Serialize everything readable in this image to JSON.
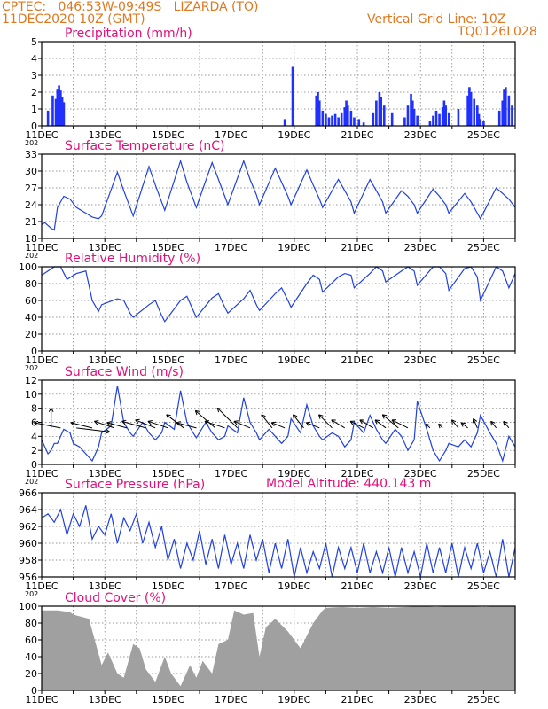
{
  "header": {
    "line1": "CPTEC:   046:53W-09:49S   LIZARDA (TO)",
    "line2": "11DEC2020 10Z (GMT)",
    "grid_note": "Vertical Grid Line: 10Z",
    "code": "TQ0126L028",
    "model_altitude": "Model Altitude: 440.143 m"
  },
  "colors": {
    "header": "#e07820",
    "title": "#e0107a",
    "line": "#2040e0",
    "bar": "#2030ff",
    "cloud": "#a0a0a0",
    "arrow": "#000000"
  },
  "x_axis": {
    "start_day": 11,
    "end_day": 26,
    "tick_labels": [
      "11DEC",
      "13DEC",
      "15DEC",
      "17DEC",
      "19DEC",
      "21DEC",
      "23DEC",
      "25DEC"
    ],
    "year_fragment": "202"
  },
  "chart_data": [
    {
      "type": "bar",
      "title": "Precipitation (mm/h)",
      "ylim": [
        0,
        5
      ],
      "yticks": [
        "0",
        "1",
        "2",
        "3",
        "4",
        "5"
      ],
      "x": [
        11.2,
        11.35,
        11.45,
        11.5,
        11.55,
        11.6,
        11.65,
        11.7,
        18.7,
        18.95,
        19.7,
        19.75,
        19.8,
        19.9,
        20.0,
        20.1,
        20.2,
        20.3,
        20.4,
        20.5,
        20.6,
        20.65,
        20.7,
        20.8,
        20.9,
        21.05,
        21.2,
        21.5,
        21.6,
        21.7,
        21.75,
        21.85,
        22.1,
        22.5,
        22.6,
        22.7,
        22.75,
        22.8,
        22.9,
        23.3,
        23.4,
        23.5,
        23.6,
        23.7,
        23.75,
        23.8,
        23.9,
        24.2,
        24.5,
        24.55,
        24.6,
        24.7,
        24.8,
        24.85,
        24.9,
        25.0,
        25.5,
        25.6,
        25.65,
        25.7,
        25.8,
        25.9
      ],
      "values": [
        0.9,
        1.8,
        1.6,
        2.2,
        2.4,
        2.1,
        1.7,
        1.4,
        0.4,
        3.5,
        1.8,
        2.0,
        1.5,
        0.9,
        0.7,
        0.5,
        0.6,
        0.7,
        0.5,
        0.8,
        1.1,
        1.5,
        1.2,
        0.9,
        0.5,
        0.4,
        0.2,
        0.8,
        1.5,
        2.0,
        1.7,
        1.2,
        0.8,
        0.5,
        1.2,
        1.9,
        1.5,
        1.0,
        0.6,
        0.3,
        0.6,
        0.9,
        0.7,
        1.1,
        1.5,
        1.2,
        0.8,
        1.0,
        1.8,
        2.3,
        2.0,
        1.6,
        1.2,
        0.7,
        0.4,
        0.3,
        0.9,
        1.5,
        2.2,
        2.3,
        1.8,
        1.2
      ]
    },
    {
      "type": "line",
      "title": "Surface Temperature (nC)",
      "ylim": [
        18,
        33
      ],
      "yticks": [
        "18",
        "21",
        "24",
        "27",
        "30",
        "33"
      ],
      "x": [
        11.0,
        11.1,
        11.2,
        11.3,
        11.4,
        11.5,
        11.7,
        11.9,
        12.1,
        12.4,
        12.6,
        12.8,
        12.9,
        13.4,
        13.6,
        13.8,
        13.9,
        14.4,
        14.6,
        14.8,
        14.9,
        15.4,
        15.6,
        15.8,
        15.9,
        16.4,
        16.6,
        16.8,
        16.9,
        17.4,
        17.6,
        17.8,
        17.9,
        18.4,
        18.6,
        18.8,
        18.9,
        19.4,
        19.6,
        19.8,
        19.9,
        20.4,
        20.6,
        20.8,
        20.9,
        21.4,
        21.6,
        21.8,
        21.9,
        22.4,
        22.6,
        22.8,
        22.9,
        23.4,
        23.6,
        23.8,
        23.9,
        24.4,
        24.6,
        24.8,
        24.9,
        25.4,
        25.6,
        25.8,
        26.0
      ],
      "values": [
        20.5,
        20.8,
        20.3,
        19.8,
        19.5,
        23.5,
        25.5,
        25.0,
        23.5,
        22.5,
        21.8,
        21.5,
        22.0,
        29.8,
        26.5,
        23.5,
        22.0,
        30.8,
        27.5,
        24.5,
        23.0,
        31.8,
        28.0,
        25.0,
        23.5,
        31.5,
        28.5,
        25.5,
        24.0,
        31.8,
        28.5,
        25.8,
        24.0,
        30.5,
        28.0,
        25.5,
        24.0,
        30.2,
        27.5,
        25.0,
        23.5,
        28.5,
        26.5,
        24.5,
        22.5,
        28.5,
        26.5,
        24.5,
        22.5,
        26.5,
        25.5,
        24.0,
        22.5,
        26.8,
        25.5,
        24.0,
        22.5,
        26.0,
        24.5,
        22.5,
        21.5,
        27.0,
        26.0,
        25.0,
        23.5
      ]
    },
    {
      "type": "line",
      "title": "Relative Humidity (%)",
      "ylim": [
        0,
        100
      ],
      "yticks": [
        "0",
        "20",
        "40",
        "60",
        "80",
        "100"
      ],
      "x": [
        11.0,
        11.2,
        11.4,
        11.6,
        11.8,
        12.1,
        12.4,
        12.6,
        12.8,
        12.9,
        13.4,
        13.6,
        13.8,
        13.9,
        14.4,
        14.6,
        14.8,
        14.9,
        15.4,
        15.6,
        15.8,
        15.9,
        16.4,
        16.6,
        16.8,
        16.9,
        17.4,
        17.6,
        17.8,
        17.9,
        18.4,
        18.6,
        18.8,
        18.9,
        19.4,
        19.6,
        19.8,
        19.9,
        20.4,
        20.6,
        20.8,
        20.9,
        21.4,
        21.6,
        21.8,
        21.9,
        22.4,
        22.6,
        22.8,
        22.9,
        23.4,
        23.6,
        23.8,
        23.9,
        24.4,
        24.6,
        24.8,
        24.9,
        25.4,
        25.6,
        25.8,
        26.0
      ],
      "values": [
        90,
        95,
        100,
        100,
        85,
        92,
        95,
        60,
        47,
        55,
        62,
        60,
        45,
        40,
        55,
        60,
        42,
        35,
        60,
        65,
        48,
        40,
        63,
        68,
        52,
        45,
        62,
        72,
        55,
        48,
        68,
        75,
        60,
        52,
        80,
        90,
        85,
        70,
        88,
        92,
        90,
        75,
        92,
        100,
        95,
        82,
        95,
        100,
        95,
        78,
        100,
        100,
        92,
        72,
        98,
        100,
        88,
        60,
        100,
        95,
        75,
        92
      ]
    },
    {
      "type": "line",
      "title": "Surface Wind (m/s)",
      "ylim": [
        0,
        12
      ],
      "yticks": [
        "0",
        "2",
        "4",
        "6",
        "8",
        "10",
        "12"
      ],
      "x": [
        11.0,
        11.1,
        11.2,
        11.3,
        11.4,
        11.5,
        11.7,
        11.9,
        12.0,
        12.2,
        12.4,
        12.6,
        12.8,
        12.9,
        13.2,
        13.4,
        13.6,
        13.8,
        13.9,
        14.2,
        14.4,
        14.6,
        14.8,
        14.9,
        15.2,
        15.4,
        15.6,
        15.8,
        15.9,
        16.2,
        16.4,
        16.6,
        16.8,
        16.9,
        17.2,
        17.4,
        17.6,
        17.8,
        17.9,
        18.2,
        18.4,
        18.6,
        18.8,
        18.9,
        19.2,
        19.4,
        19.6,
        19.8,
        19.9,
        20.2,
        20.4,
        20.6,
        20.8,
        20.9,
        21.2,
        21.4,
        21.6,
        21.8,
        21.9,
        22.2,
        22.4,
        22.6,
        22.8,
        22.9,
        23.2,
        23.4,
        23.6,
        23.8,
        23.9,
        24.2,
        24.4,
        24.6,
        24.8,
        24.9,
        25.2,
        25.4,
        25.6,
        25.8,
        26.0
      ],
      "values": [
        3.5,
        2.5,
        1.5,
        2.0,
        3.0,
        3.0,
        5.0,
        4.5,
        3.0,
        2.5,
        1.5,
        0.5,
        2.5,
        4.5,
        5.5,
        11.2,
        6.0,
        4.5,
        4.0,
        6.0,
        4.5,
        3.5,
        4.5,
        6.0,
        5.0,
        10.5,
        6.0,
        4.5,
        3.8,
        6.0,
        4.5,
        3.5,
        4.0,
        5.5,
        4.5,
        9.5,
        6.0,
        4.5,
        3.5,
        5.0,
        4.0,
        3.0,
        4.0,
        6.5,
        4.5,
        8.5,
        5.5,
        4.0,
        3.5,
        4.5,
        4.0,
        2.5,
        3.5,
        6.0,
        4.5,
        7.0,
        5.0,
        3.5,
        3.0,
        5.0,
        4.0,
        2.0,
        3.5,
        9.0,
        5.0,
        2.0,
        0.5,
        2.0,
        3.0,
        2.5,
        3.5,
        2.5,
        4.5,
        7.0,
        4.5,
        3.0,
        0.5,
        4.0,
        2.5
      ]
    },
    {
      "type": "line",
      "title": "Surface Pressure (hPa)",
      "ylim": [
        956,
        966
      ],
      "yticks": [
        "956",
        "958",
        "960",
        "962",
        "964",
        "966"
      ],
      "x": [
        11.0,
        11.2,
        11.4,
        11.6,
        11.8,
        12.0,
        12.2,
        12.4,
        12.6,
        12.8,
        13.0,
        13.2,
        13.4,
        13.6,
        13.8,
        14.0,
        14.2,
        14.4,
        14.6,
        14.8,
        15.0,
        15.2,
        15.4,
        15.6,
        15.8,
        16.0,
        16.2,
        16.4,
        16.6,
        16.8,
        17.0,
        17.2,
        17.4,
        17.6,
        17.8,
        18.0,
        18.2,
        18.4,
        18.6,
        18.8,
        19.0,
        19.2,
        19.4,
        19.6,
        19.8,
        20.0,
        20.2,
        20.4,
        20.6,
        20.8,
        21.0,
        21.2,
        21.4,
        21.6,
        21.8,
        22.0,
        22.2,
        22.4,
        22.6,
        22.8,
        23.0,
        23.2,
        23.4,
        23.6,
        23.8,
        24.0,
        24.2,
        24.4,
        24.6,
        24.8,
        25.0,
        25.2,
        25.4,
        25.6,
        25.8,
        26.0
      ],
      "values": [
        963.0,
        963.5,
        962.5,
        964.0,
        961.0,
        963.5,
        962.0,
        964.5,
        960.5,
        962.0,
        961.0,
        963.5,
        960.0,
        963.0,
        961.5,
        963.5,
        960.0,
        962.5,
        959.5,
        962.0,
        958.0,
        960.5,
        957.0,
        960.0,
        958.0,
        961.5,
        957.5,
        960.5,
        957.0,
        961.0,
        957.5,
        960.0,
        957.0,
        961.0,
        958.0,
        960.5,
        956.5,
        960.0,
        957.0,
        960.5,
        956.0,
        959.5,
        956.5,
        959.0,
        957.0,
        960.0,
        956.0,
        959.5,
        957.0,
        959.5,
        956.5,
        960.0,
        956.5,
        959.0,
        956.5,
        959.5,
        956.0,
        959.5,
        956.5,
        959.0,
        956.0,
        960.0,
        956.5,
        959.5,
        956.5,
        960.0,
        956.0,
        959.5,
        957.0,
        960.0,
        956.5,
        959.0,
        956.0,
        960.5,
        956.0,
        959.5
      ]
    },
    {
      "type": "area",
      "title": "Cloud Cover (%)",
      "ylim": [
        0,
        100
      ],
      "yticks": [
        "0",
        "20",
        "40",
        "60",
        "80",
        "100"
      ],
      "x": [
        11.0,
        11.5,
        11.9,
        12.0,
        12.5,
        12.9,
        13.1,
        13.4,
        13.6,
        13.9,
        14.1,
        14.3,
        14.6,
        14.9,
        15.1,
        15.4,
        15.7,
        15.9,
        16.1,
        16.4,
        16.6,
        16.9,
        17.1,
        17.4,
        17.7,
        17.9,
        18.1,
        18.4,
        18.8,
        19.2,
        19.6,
        19.9,
        20.0,
        20.5,
        21.0,
        21.5,
        22.0,
        22.5,
        23.0,
        23.5,
        24.0,
        24.5,
        25.0,
        25.5,
        26.0
      ],
      "values": [
        95,
        95,
        93,
        90,
        85,
        30,
        45,
        20,
        15,
        55,
        50,
        25,
        10,
        40,
        20,
        5,
        30,
        15,
        35,
        20,
        55,
        60,
        95,
        90,
        92,
        40,
        75,
        85,
        70,
        50,
        80,
        95,
        98,
        99,
        98,
        99,
        98,
        99,
        100,
        99,
        100,
        100,
        99,
        100,
        100
      ]
    }
  ],
  "wind_arrows": [
    {
      "x": 11.3,
      "u": 0.0,
      "v": 1.5
    },
    {
      "x": 11.6,
      "u": 2.0,
      "v": 0.4
    },
    {
      "x": 12.1,
      "u": -2.5,
      "v": -0.3
    },
    {
      "x": 12.6,
      "u": 1.6,
      "v": 0.4
    },
    {
      "x": 13.3,
      "u": 1.5,
      "v": 0.5
    },
    {
      "x": 13.7,
      "u": 1.5,
      "v": 0.4
    },
    {
      "x": 14.3,
      "u": 1.8,
      "v": 0.5
    },
    {
      "x": 14.6,
      "u": 1.5,
      "v": 0.6
    },
    {
      "x": 15.0,
      "u": 1.5,
      "v": 0.5
    },
    {
      "x": 15.5,
      "u": 1.3,
      "v": 1.0
    },
    {
      "x": 15.9,
      "u": 1.5,
      "v": 0.4
    },
    {
      "x": 16.5,
      "u": 1.5,
      "v": 1.3
    },
    {
      "x": 16.8,
      "u": 1.5,
      "v": 0.5
    },
    {
      "x": 17.2,
      "u": 1.5,
      "v": 1.5
    },
    {
      "x": 17.6,
      "u": 1.2,
      "v": 0.5
    },
    {
      "x": 18.3,
      "u": 0.8,
      "v": 1.0
    },
    {
      "x": 18.7,
      "u": 1.0,
      "v": 0.4
    },
    {
      "x": 19.3,
      "u": 0.8,
      "v": 1.0
    },
    {
      "x": 19.8,
      "u": 1.0,
      "v": 0.4
    },
    {
      "x": 20.2,
      "u": 1.0,
      "v": 1.0
    },
    {
      "x": 20.6,
      "u": 1.0,
      "v": 0.6
    },
    {
      "x": 21.2,
      "u": 1.0,
      "v": 0.5
    },
    {
      "x": 21.5,
      "u": 1.0,
      "v": 0.6
    },
    {
      "x": 21.9,
      "u": 0.8,
      "v": 0.6
    },
    {
      "x": 22.3,
      "u": 1.2,
      "v": 1.0
    },
    {
      "x": 22.6,
      "u": 1.2,
      "v": 0.6
    },
    {
      "x": 23.3,
      "u": 0.3,
      "v": 0.3
    },
    {
      "x": 23.7,
      "u": 0.3,
      "v": 0.3
    },
    {
      "x": 24.2,
      "u": 0.5,
      "v": 0.6
    },
    {
      "x": 24.5,
      "u": 0.5,
      "v": 0.4
    },
    {
      "x": 24.8,
      "u": 0.3,
      "v": 0.7
    },
    {
      "x": 25.4,
      "u": 0.4,
      "v": 0.5
    },
    {
      "x": 25.8,
      "u": 0.4,
      "v": 0.5
    }
  ]
}
